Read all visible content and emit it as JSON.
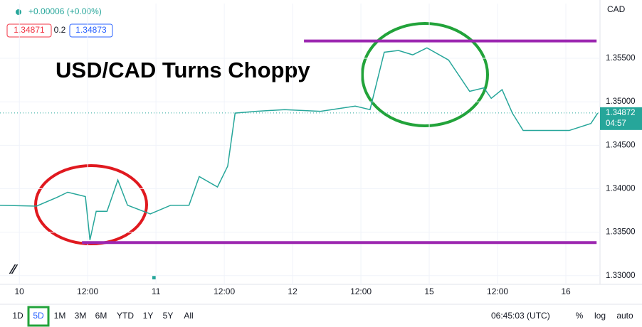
{
  "chart_data": {
    "type": "line",
    "title": "USD/CAD Turns Choppy",
    "color": "#26a69a",
    "x": [
      -3.4,
      3,
      6.6,
      8.5,
      11.6,
      12.4,
      13.5,
      15.4,
      17.3,
      19,
      23,
      26.6,
      29.8,
      31.6,
      34.8,
      36.6,
      37.9,
      41.6,
      46.6,
      52.9,
      59,
      61.6,
      64.1,
      66.6,
      69.1,
      71.6,
      75.4,
      79.1,
      81.6,
      82.9,
      84.8,
      86.6,
      88.5,
      91.6,
      96.6,
      100.4,
      101.6
    ],
    "values": [
      1.3381,
      1.338,
      1.339,
      1.3396,
      1.3391,
      1.3341,
      1.3374,
      1.3374,
      1.341,
      1.3381,
      1.3371,
      1.3381,
      1.3381,
      1.3414,
      1.3402,
      1.3426,
      1.3487,
      1.3489,
      1.3491,
      1.3489,
      1.3495,
      1.3491,
      1.3557,
      1.3559,
      1.3554,
      1.3562,
      1.3548,
      1.3512,
      1.3516,
      1.3504,
      1.3514,
      1.3487,
      1.3467,
      1.3467,
      1.3467,
      1.3475,
      1.3487
    ],
    "xlim": [
      -3.4,
      102
    ],
    "xticks": [
      {
        "value": 0,
        "label": "10"
      },
      {
        "value": 12,
        "label": "12:00"
      },
      {
        "value": 24,
        "label": "11"
      },
      {
        "value": 36,
        "label": "12:00"
      },
      {
        "value": 48,
        "label": "12"
      },
      {
        "value": 60,
        "label": "12:00"
      },
      {
        "value": 72,
        "label": "15"
      },
      {
        "value": 84,
        "label": "12:00"
      },
      {
        "value": 96,
        "label": "16"
      }
    ],
    "ylim": [
      1.329,
      1.3613
    ],
    "yticks": [
      {
        "value": 1.33,
        "label": "1.33000"
      },
      {
        "value": 1.335,
        "label": "1.33500"
      },
      {
        "value": 1.34,
        "label": "1.34000"
      },
      {
        "value": 1.345,
        "label": "1.34500"
      },
      {
        "value": 1.35,
        "label": "1.35000"
      },
      {
        "value": 1.355,
        "label": "1.35500"
      }
    ],
    "hlines": [
      {
        "value": 1.357,
        "x": [
          50,
          101.4
        ],
        "color": "#9c27b0"
      },
      {
        "value": 1.3338,
        "x": [
          11,
          101.4
        ],
        "color": "#9c27b0"
      }
    ],
    "currency": "CAD",
    "last_price": {
      "value": 1.34872,
      "label": "1.34872",
      "countdown": "04:57"
    }
  },
  "header": {
    "change": "+0.00006 (+0.00%)",
    "bid": "1.34871",
    "spread": "0.2",
    "ask": "1.34873"
  },
  "toolbar": {
    "ranges": [
      "1D",
      "5D",
      "1M",
      "3M",
      "6M",
      "YTD",
      "1Y",
      "5Y",
      "All"
    ],
    "clock": "06:45:03 (UTC)",
    "options": [
      "%",
      "log",
      "auto"
    ]
  }
}
